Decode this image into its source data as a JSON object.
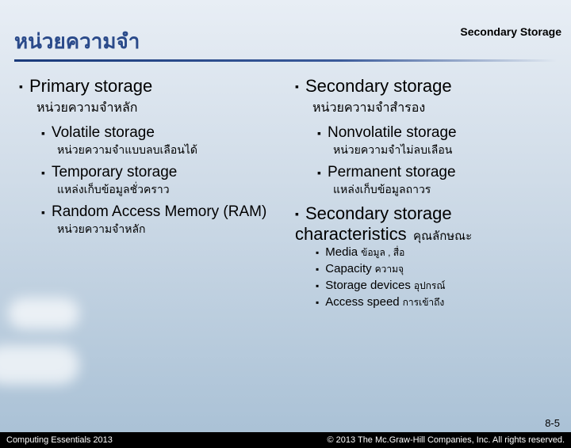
{
  "header": {
    "topic": "Secondary Storage"
  },
  "title": "หน่วยความจำ",
  "left": {
    "h1": "Primary storage",
    "h1_thai": "หน่วยความจำหลัก",
    "items": [
      {
        "en": "Volatile storage",
        "th": "หน่วยความจำแบบลบเลือนได้"
      },
      {
        "en": "Temporary storage",
        "th": "แหล่งเก็บข้อมูลชั่วคราว"
      },
      {
        "en": "Random Access Memory (RAM)",
        "th": "หน่วยความจำหลัก"
      }
    ]
  },
  "right": {
    "h1": "Secondary storage",
    "h1_thai": "หน่วยความจำสำรอง",
    "items": [
      {
        "en": "Nonvolatile storage",
        "th": "หน่วยความจำไม่ลบเลือน"
      },
      {
        "en": "Permanent storage",
        "th": "แหล่งเก็บข้อมูลถาวร"
      }
    ],
    "h2": "Secondary storage characteristics",
    "h2_thai": "คุณลักษณะ",
    "chars": [
      {
        "en": "Media",
        "th": "ข้อมูล , สื่อ"
      },
      {
        "en": "Capacity",
        "th": "ความจุ"
      },
      {
        "en": "Storage devices",
        "th": "อุปกรณ์"
      },
      {
        "en": "Access speed",
        "th": "การเข้าถึง"
      }
    ]
  },
  "page": "8-5",
  "footer": {
    "left": "Computing Essentials 2013",
    "right": "© 2013 The Mc.Graw-Hill Companies, Inc. All rights reserved."
  }
}
